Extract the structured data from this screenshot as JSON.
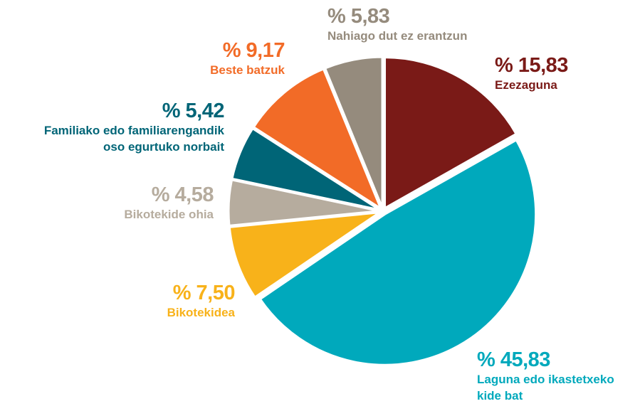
{
  "chart_data": {
    "type": "pie",
    "categories": [
      "Ezezaguna",
      "Laguna edo ikastetxeko\nkide bat",
      "Bikotekidea",
      "Bikotekide ohia",
      "Familiako edo familiarengandik\noso egurtuko norbait",
      "Beste batzuk",
      "Nahiago dut ez erantzun"
    ],
    "values": [
      15.83,
      45.83,
      7.5,
      4.58,
      5.42,
      9.17,
      5.83
    ],
    "value_labels": [
      "% 15,83",
      "% 45,83",
      "% 7,50",
      "% 4,58",
      "% 5,42",
      "% 9,17",
      "% 5,83"
    ],
    "colors": [
      "#7a1a17",
      "#00a9bc",
      "#f8b21a",
      "#b6ac9e",
      "#006577",
      "#f26b27",
      "#958b7d"
    ]
  }
}
